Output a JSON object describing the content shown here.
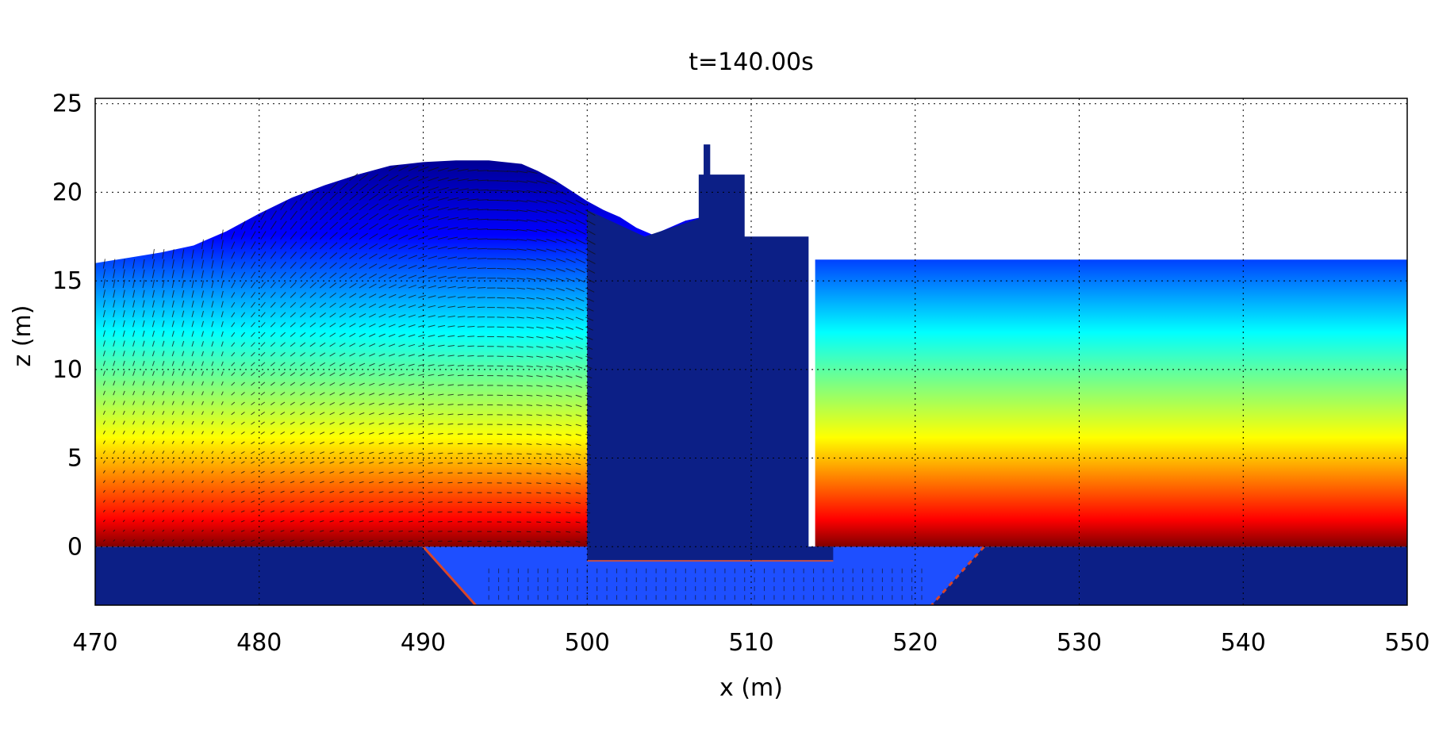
{
  "chart_data": {
    "type": "heatmap",
    "title": "t=140.00s",
    "xlabel": "x (m)",
    "ylabel": "z (m)",
    "xlim": [
      470,
      550
    ],
    "ylim": [
      -3.3,
      25.3
    ],
    "xticks": [
      470,
      480,
      490,
      500,
      510,
      520,
      530,
      540,
      550
    ],
    "yticks": [
      0,
      5,
      10,
      15,
      20,
      25
    ],
    "grid": true,
    "colormap": "jet",
    "colormap_stops": [
      "#00008f",
      "#0000ff",
      "#00ffff",
      "#ffff00",
      "#ff0000",
      "#800000"
    ],
    "solid_color": "#0c1f86",
    "basin_fill_color": "#1e4fff",
    "free_surface_left": [
      [
        470,
        16.0
      ],
      [
        472,
        16.3
      ],
      [
        474,
        16.6
      ],
      [
        476,
        17.0
      ],
      [
        478,
        17.8
      ],
      [
        480,
        18.8
      ],
      [
        482,
        19.7
      ],
      [
        484,
        20.4
      ],
      [
        486,
        21.0
      ],
      [
        488,
        21.5
      ],
      [
        490,
        21.7
      ],
      [
        492,
        21.8
      ],
      [
        494,
        21.8
      ],
      [
        496,
        21.6
      ],
      [
        497,
        21.2
      ],
      [
        498,
        20.7
      ],
      [
        499,
        20.1
      ],
      [
        500,
        19.5
      ],
      [
        501,
        19.0
      ],
      [
        502,
        18.6
      ],
      [
        503,
        18.0
      ],
      [
        504,
        17.6
      ],
      [
        505,
        18.0
      ],
      [
        506,
        18.4
      ],
      [
        507,
        18.6
      ]
    ],
    "free_surface_right": {
      "x_start": 513.9,
      "x_end": 550,
      "z": 16.2
    },
    "structure_outline": [
      [
        500.0,
        -0.8
      ],
      [
        500.0,
        19.0
      ],
      [
        503.5,
        17.5
      ],
      [
        506.8,
        18.5
      ],
      [
        506.8,
        21.0
      ],
      [
        507.1,
        21.0
      ],
      [
        507.1,
        22.7
      ],
      [
        507.5,
        22.7
      ],
      [
        507.5,
        21.0
      ],
      [
        509.6,
        21.0
      ],
      [
        509.6,
        17.5
      ],
      [
        513.5,
        17.5
      ],
      [
        513.5,
        0.0
      ],
      [
        515.0,
        0.0
      ],
      [
        515.0,
        -0.8
      ]
    ],
    "bed_profile": [
      [
        470,
        0
      ],
      [
        490,
        0
      ],
      [
        493.2,
        -3.3
      ],
      [
        521,
        -3.3
      ],
      [
        524.2,
        0
      ],
      [
        550,
        0
      ]
    ]
  }
}
